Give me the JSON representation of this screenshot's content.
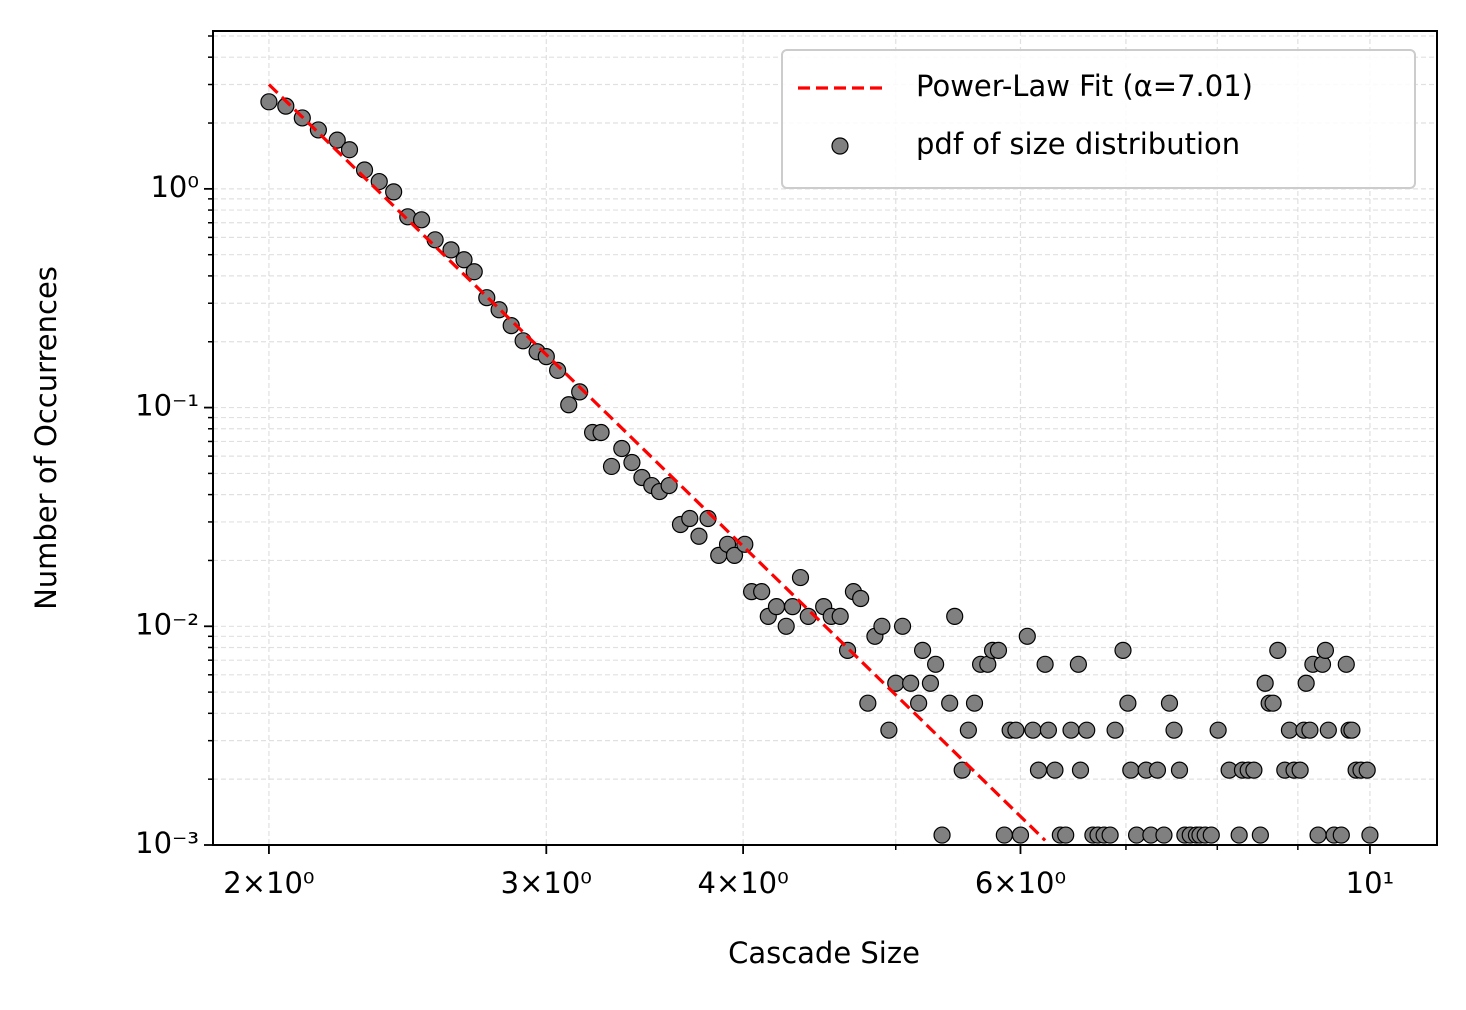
{
  "chart_data": {
    "type": "scatter",
    "xlabel": "Cascade Size",
    "ylabel": "Number of Occurrences",
    "xscale": "log",
    "yscale": "log",
    "grid": true,
    "legend": "upper right",
    "xlim": [
      1.843,
      11.03
    ],
    "ylim": [
      0.001,
      5.27
    ],
    "xticks": [
      {
        "value": 2,
        "label": "2×10⁰"
      },
      {
        "value": 3,
        "label": "3×10⁰"
      },
      {
        "value": 4,
        "label": "4×10⁰"
      },
      {
        "value": 6,
        "label": "6×10⁰"
      },
      {
        "value": 10,
        "label": "10¹"
      }
    ],
    "xminorticks": [
      5,
      7,
      8,
      9
    ],
    "yticks": [
      {
        "value": 0.001,
        "label": "10⁻³"
      },
      {
        "value": 0.01,
        "label": "10⁻²"
      },
      {
        "value": 0.1,
        "label": "10⁻¹"
      },
      {
        "value": 1,
        "label": "10⁰"
      }
    ],
    "yminorticks": [
      0.002,
      0.003,
      0.004,
      0.005,
      0.006,
      0.007,
      0.008,
      0.009,
      0.02,
      0.03,
      0.04,
      0.05,
      0.06,
      0.07,
      0.08,
      0.09,
      0.2,
      0.3,
      0.4,
      0.5,
      0.6,
      0.7,
      0.8,
      0.9,
      2,
      3,
      4,
      5
    ],
    "series": [
      {
        "name": "Power-Law Fit (α=7.01)",
        "type": "line",
        "color": "#ff0000",
        "dashed": true,
        "x": [
          2,
          6.22
        ],
        "values": [
          3.0,
          0.00105
        ]
      },
      {
        "name": "pdf of size distribution",
        "type": "scatter",
        "color": "#808080",
        "x": [
          2.0,
          2.05,
          2.1,
          2.15,
          2.21,
          2.25,
          2.3,
          2.35,
          2.4,
          2.45,
          2.5,
          2.55,
          2.61,
          2.66,
          2.7,
          2.75,
          2.8,
          2.85,
          2.9,
          2.96,
          3.0,
          3.05,
          3.1,
          3.15,
          3.21,
          3.25,
          3.3,
          3.35,
          3.4,
          3.45,
          3.5,
          3.54,
          3.59,
          3.65,
          3.7,
          3.75,
          3.8,
          3.86,
          3.91,
          3.95,
          4.01,
          4.05,
          4.11,
          4.15,
          4.2,
          4.26,
          4.3,
          4.35,
          4.4,
          4.5,
          4.55,
          4.61,
          4.66,
          4.7,
          4.75,
          4.8,
          4.85,
          4.9,
          4.95,
          5.0,
          5.05,
          5.11,
          5.17,
          5.2,
          5.26,
          5.3,
          5.35,
          5.41,
          5.45,
          5.51,
          5.56,
          5.61,
          5.66,
          5.72,
          5.76,
          5.81,
          5.86,
          5.91,
          5.96,
          6.0,
          6.06,
          6.11,
          6.16,
          6.22,
          6.25,
          6.31,
          6.36,
          6.41,
          6.46,
          6.53,
          6.55,
          6.61,
          6.67,
          6.72,
          6.78,
          6.84,
          6.89,
          6.97,
          7.02,
          7.05,
          7.11,
          7.21,
          7.26,
          7.33,
          7.4,
          7.46,
          7.51,
          7.57,
          7.63,
          7.69,
          7.76,
          7.8,
          7.86,
          7.93,
          8.01,
          8.14,
          8.26,
          8.3,
          8.37,
          8.44,
          8.52,
          8.58,
          8.63,
          8.68,
          8.74,
          8.83,
          8.89,
          8.95,
          9.03,
          9.11,
          9.08,
          9.16,
          9.2,
          9.27,
          9.33,
          9.37,
          9.41,
          9.49,
          9.59,
          9.66,
          9.7,
          9.74,
          9.8,
          9.87,
          9.96,
          10.0
        ],
        "values": [
          2.5,
          2.39,
          2.11,
          1.86,
          1.67,
          1.51,
          1.22,
          1.08,
          0.969,
          0.745,
          0.722,
          0.585,
          0.526,
          0.474,
          0.418,
          0.318,
          0.28,
          0.237,
          0.202,
          0.18,
          0.171,
          0.148,
          0.103,
          0.118,
          0.0769,
          0.0769,
          0.0538,
          0.065,
          0.0561,
          0.0479,
          0.044,
          0.0413,
          0.044,
          0.0292,
          0.0311,
          0.0258,
          0.0311,
          0.0211,
          0.0237,
          0.0211,
          0.0237,
          0.0144,
          0.0144,
          0.0111,
          0.0123,
          0.01,
          0.0123,
          0.0167,
          0.0111,
          0.0123,
          0.0111,
          0.0111,
          0.00776,
          0.0144,
          0.0134,
          0.00445,
          0.009,
          0.01,
          0.00335,
          0.00549,
          0.01,
          0.00549,
          0.00445,
          0.00776,
          0.00549,
          0.0067,
          0.00111,
          0.00445,
          0.0111,
          0.0022,
          0.00335,
          0.00445,
          0.0067,
          0.0067,
          0.00776,
          0.00776,
          0.00111,
          0.00335,
          0.00335,
          0.00111,
          0.009,
          0.00335,
          0.0022,
          0.0067,
          0.00335,
          0.0022,
          0.00111,
          0.00111,
          0.00335,
          0.0067,
          0.0022,
          0.00335,
          0.00111,
          0.00111,
          0.00111,
          0.00111,
          0.00335,
          0.00776,
          0.00445,
          0.0022,
          0.00111,
          0.0022,
          0.00111,
          0.0022,
          0.00111,
          0.00445,
          0.00335,
          0.0022,
          0.00111,
          0.00111,
          0.00111,
          0.00111,
          0.00111,
          0.00111,
          0.00335,
          0.0022,
          0.00111,
          0.0022,
          0.0022,
          0.0022,
          0.00111,
          0.00549,
          0.00445,
          0.00445,
          0.00776,
          0.0022,
          0.00335,
          0.0022,
          0.0022,
          0.00549,
          0.00335,
          0.00335,
          0.0067,
          0.00111,
          0.0067,
          0.00776,
          0.00335,
          0.00111,
          0.00111,
          0.0067,
          0.00335,
          0.00335,
          0.0022,
          0.0022,
          0.0022,
          0.00111
        ]
      }
    ]
  }
}
